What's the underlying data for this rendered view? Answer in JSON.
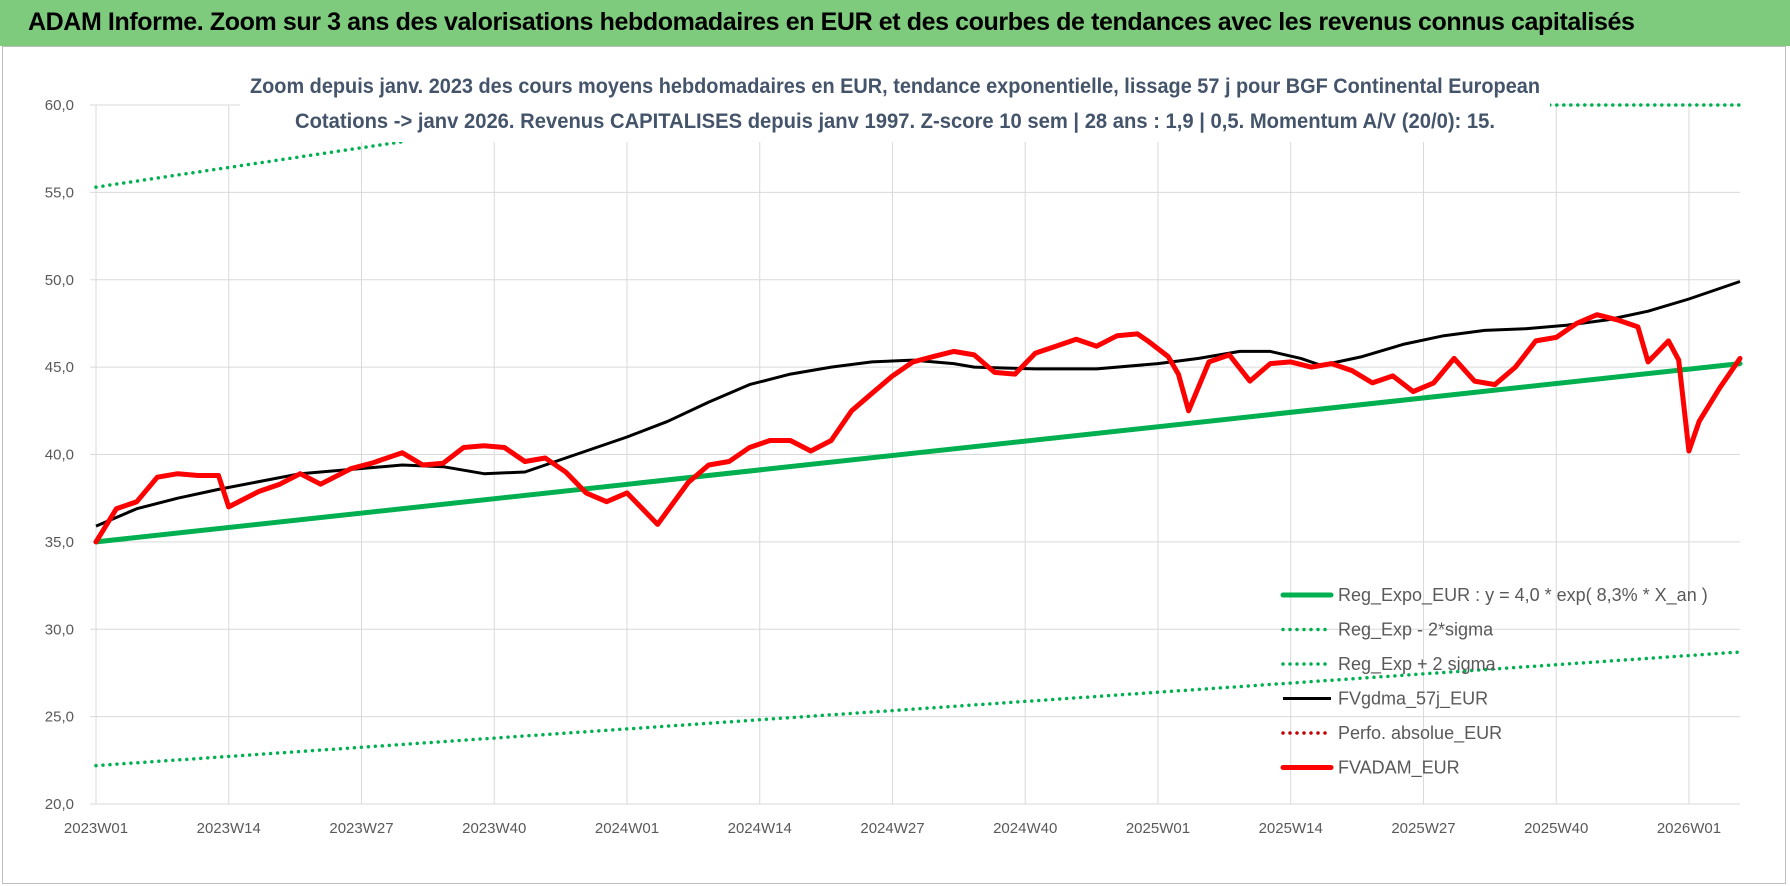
{
  "header": {
    "title": "ADAM Informe. Zoom sur 3 ans des valorisations hebdomadaires en EUR et des courbes de tendances avec les revenus connus capitalisés"
  },
  "colors": {
    "banner": "#7ecb7e",
    "reg_expo": "#00b050",
    "fvgdma": "#000000",
    "fvadam": "#ff0000",
    "perfo": "#c00000",
    "grid": "#d9d9d9"
  },
  "chart_data": {
    "type": "line",
    "title": [
      "Zoom depuis janv. 2023 des cours moyens hebdomadaires en EUR, tendance exponentielle, lissage 57 j pour BGF Continental European",
      "Cotations -> janv 2026. Revenus CAPITALISES depuis janv 1997. Z-score 10 sem | 28 ans : 1,9 | 0,5. Momentum A/V (20/0): 15."
    ],
    "xlabel": "",
    "ylabel": "",
    "ylim": [
      20,
      60
    ],
    "y_ticks": [
      "20,0",
      "25,0",
      "30,0",
      "35,0",
      "40,0",
      "45,0",
      "50,0",
      "55,0",
      "60,0"
    ],
    "x_tick_labels": [
      "2023W01",
      "2023W14",
      "2023W27",
      "2023W40",
      "2024W01",
      "2024W14",
      "2024W27",
      "2024W40",
      "2025W01",
      "2025W14",
      "2025W27",
      "2025W40",
      "2026W01"
    ],
    "x_tick_index": [
      0,
      13,
      26,
      39,
      52,
      65,
      78,
      91,
      104,
      117,
      130,
      143,
      156
    ],
    "n_weeks": 162,
    "grid": true,
    "legend_position": "bottom-right",
    "series": [
      {
        "name": "Reg_Expo_EUR : y = 4,0 * exp( 8,3% *  X_an )",
        "style": "solid-thick",
        "color_key": "reg_expo",
        "keyframes": [
          [
            0,
            35.0
          ],
          [
            161,
            45.2
          ]
        ]
      },
      {
        "name": "Reg_Exp - 2*sigma",
        "style": "dotted",
        "color_key": "reg_expo",
        "keyframes": [
          [
            0,
            22.2
          ],
          [
            161,
            28.7
          ]
        ]
      },
      {
        "name": "Reg_Exp + 2 sigma",
        "style": "dotted",
        "color_key": "reg_expo",
        "keyframes": [
          [
            0,
            55.3
          ],
          [
            30,
            57.9
          ]
        ],
        "extra_keyframes": [
          [
            141,
            60.0
          ],
          [
            161,
            60.0
          ]
        ]
      },
      {
        "name": "FVgdma_57j_EUR",
        "style": "solid",
        "color_key": "fvgdma",
        "keyframes": [
          [
            0,
            35.9
          ],
          [
            4,
            36.9
          ],
          [
            8,
            37.5
          ],
          [
            12,
            38.0
          ],
          [
            20,
            38.9
          ],
          [
            26,
            39.2
          ],
          [
            30,
            39.4
          ],
          [
            34,
            39.3
          ],
          [
            38,
            38.9
          ],
          [
            42,
            39.0
          ],
          [
            46,
            39.8
          ],
          [
            52,
            41.0
          ],
          [
            56,
            41.9
          ],
          [
            60,
            43.0
          ],
          [
            64,
            44.0
          ],
          [
            68,
            44.6
          ],
          [
            72,
            45.0
          ],
          [
            76,
            45.3
          ],
          [
            80,
            45.4
          ],
          [
            84,
            45.2
          ],
          [
            86,
            45.0
          ],
          [
            92,
            44.9
          ],
          [
            98,
            44.9
          ],
          [
            104,
            45.2
          ],
          [
            108,
            45.5
          ],
          [
            112,
            45.9
          ],
          [
            115,
            45.9
          ],
          [
            118,
            45.5
          ],
          [
            120,
            45.1
          ],
          [
            124,
            45.6
          ],
          [
            128,
            46.3
          ],
          [
            132,
            46.8
          ],
          [
            136,
            47.1
          ],
          [
            140,
            47.2
          ],
          [
            144,
            47.4
          ],
          [
            148,
            47.7
          ],
          [
            152,
            48.2
          ],
          [
            156,
            48.9
          ],
          [
            161,
            49.9
          ]
        ]
      },
      {
        "name": "Perfo. absolue_EUR",
        "style": "dotted",
        "color_key": "perfo",
        "keyframes": []
      },
      {
        "name": "FVADAM_EUR",
        "style": "solid-thick",
        "color_key": "fvadam",
        "keyframes": [
          [
            0,
            35.0
          ],
          [
            2,
            36.9
          ],
          [
            4,
            37.3
          ],
          [
            6,
            38.7
          ],
          [
            8,
            38.9
          ],
          [
            10,
            38.8
          ],
          [
            12,
            38.8
          ],
          [
            13,
            37.0
          ],
          [
            16,
            37.9
          ],
          [
            18,
            38.3
          ],
          [
            20,
            38.9
          ],
          [
            22,
            38.3
          ],
          [
            25,
            39.2
          ],
          [
            27,
            39.5
          ],
          [
            30,
            40.1
          ],
          [
            32,
            39.4
          ],
          [
            34,
            39.5
          ],
          [
            36,
            40.4
          ],
          [
            38,
            40.5
          ],
          [
            40,
            40.4
          ],
          [
            42,
            39.6
          ],
          [
            44,
            39.8
          ],
          [
            46,
            39.0
          ],
          [
            48,
            37.8
          ],
          [
            50,
            37.3
          ],
          [
            52,
            37.8
          ],
          [
            55,
            36.0
          ],
          [
            58,
            38.4
          ],
          [
            60,
            39.4
          ],
          [
            62,
            39.6
          ],
          [
            64,
            40.4
          ],
          [
            66,
            40.8
          ],
          [
            68,
            40.8
          ],
          [
            70,
            40.2
          ],
          [
            72,
            40.8
          ],
          [
            74,
            42.5
          ],
          [
            76,
            43.5
          ],
          [
            78,
            44.5
          ],
          [
            80,
            45.3
          ],
          [
            82,
            45.6
          ],
          [
            84,
            45.9
          ],
          [
            86,
            45.7
          ],
          [
            88,
            44.7
          ],
          [
            90,
            44.6
          ],
          [
            92,
            45.8
          ],
          [
            94,
            46.2
          ],
          [
            96,
            46.6
          ],
          [
            98,
            46.2
          ],
          [
            100,
            46.8
          ],
          [
            102,
            46.9
          ],
          [
            103,
            46.5
          ],
          [
            105,
            45.6
          ],
          [
            106,
            44.6
          ],
          [
            107,
            42.5
          ],
          [
            109,
            45.3
          ],
          [
            111,
            45.7
          ],
          [
            113,
            44.2
          ],
          [
            115,
            45.2
          ],
          [
            117,
            45.3
          ],
          [
            119,
            45.0
          ],
          [
            121,
            45.2
          ],
          [
            123,
            44.8
          ],
          [
            125,
            44.1
          ],
          [
            127,
            44.5
          ],
          [
            129,
            43.6
          ],
          [
            131,
            44.1
          ],
          [
            133,
            45.5
          ],
          [
            135,
            44.2
          ],
          [
            137,
            44.0
          ],
          [
            139,
            45.0
          ],
          [
            141,
            46.5
          ],
          [
            143,
            46.7
          ],
          [
            145,
            47.5
          ],
          [
            147,
            48.0
          ],
          [
            149,
            47.7
          ],
          [
            151,
            47.3
          ],
          [
            152,
            45.3
          ],
          [
            154,
            46.5
          ],
          [
            155,
            45.4
          ],
          [
            156,
            40.2
          ],
          [
            157,
            41.9
          ],
          [
            159,
            43.8
          ],
          [
            161,
            45.5
          ]
        ]
      }
    ],
    "legend_labels": [
      "Reg_Expo_EUR : y = 4,0 * exp( 8,3% *  X_an )",
      "Reg_Exp - 2*sigma",
      "Reg_Exp + 2 sigma",
      "FVgdma_57j_EUR",
      "Perfo. absolue_EUR",
      "FVADAM_EUR"
    ]
  }
}
